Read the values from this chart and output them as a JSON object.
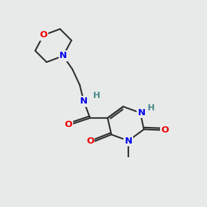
{
  "background_color": "#e8eaea",
  "atom_colors": {
    "C": "#303030",
    "N": "#0000ee",
    "O": "#ee0000",
    "H": "#4a8a8a"
  },
  "bond_color": "#303030",
  "bond_width": 1.6,
  "figsize": [
    3.0,
    3.0
  ],
  "dpi": 100
}
